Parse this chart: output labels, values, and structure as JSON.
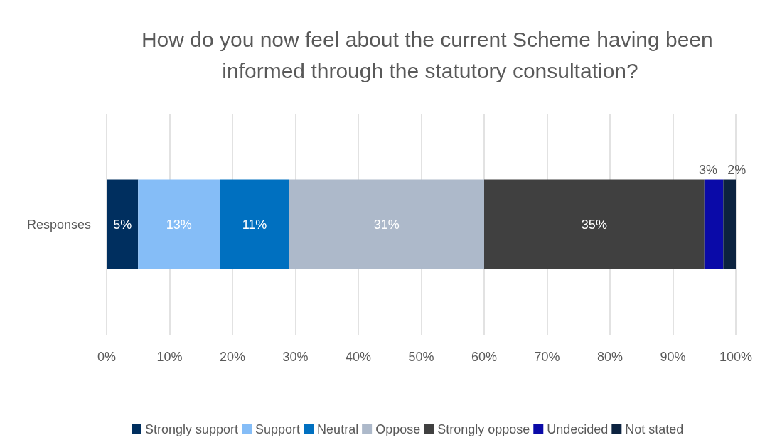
{
  "chart_data": {
    "type": "bar",
    "orientation": "horizontal",
    "stacked": true,
    "title": "How do you now feel about the current Scheme having been informed through the statutory consultation?",
    "categories": [
      "Responses"
    ],
    "series": [
      {
        "name": "Strongly support",
        "color": "#002f5f",
        "values": [
          5
        ],
        "value_labels": [
          "5%"
        ]
      },
      {
        "name": "Support",
        "color": "#85bdf7",
        "values": [
          13
        ],
        "value_labels": [
          "13%"
        ]
      },
      {
        "name": "Neutral",
        "color": "#0070c0",
        "values": [
          11
        ],
        "value_labels": [
          "11%"
        ]
      },
      {
        "name": "Oppose",
        "color": "#adb9ca",
        "values": [
          31
        ],
        "value_labels": [
          "31%"
        ]
      },
      {
        "name": "Strongly oppose",
        "color": "#404040",
        "values": [
          35
        ],
        "value_labels": [
          "35%"
        ]
      },
      {
        "name": "Undecided",
        "color": "#0a0aa8",
        "values": [
          3
        ],
        "value_labels": [
          "3%"
        ]
      },
      {
        "name": "Not stated",
        "color": "#0c2340",
        "values": [
          2
        ],
        "value_labels": [
          "2%"
        ]
      }
    ],
    "xlim": [
      0,
      100
    ],
    "xticks": [
      {
        "value": 0,
        "label": "0%"
      },
      {
        "value": 10,
        "label": "10%"
      },
      {
        "value": 20,
        "label": "20%"
      },
      {
        "value": 30,
        "label": "30%"
      },
      {
        "value": 40,
        "label": "40%"
      },
      {
        "value": 50,
        "label": "50%"
      },
      {
        "value": 60,
        "label": "60%"
      },
      {
        "value": 70,
        "label": "70%"
      },
      {
        "value": 80,
        "label": "80%"
      },
      {
        "value": 90,
        "label": "90%"
      },
      {
        "value": 100,
        "label": "100%"
      }
    ],
    "grid": "x",
    "legend": "bottom"
  }
}
